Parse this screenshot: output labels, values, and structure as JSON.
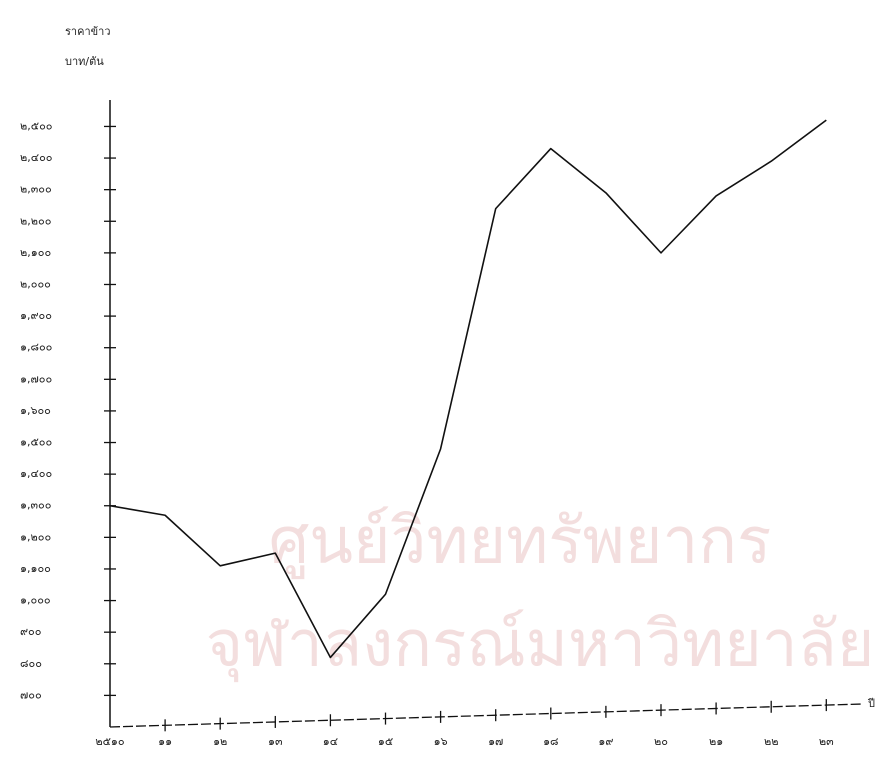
{
  "chart_data": {
    "type": "line",
    "y_axis_title": "ราคาข้าว",
    "y_axis_unit": "บาท/ตัน",
    "x_axis_title": "ปี",
    "watermark": [
      "ศูนย์วิทยทรัพยากร",
      "จุฬาลงกรณ์มหาวิทยาลัย"
    ],
    "categories": [
      "๒๕๑๐",
      "๑๑",
      "๑๒",
      "๑๓",
      "๑๔",
      "๑๕",
      "๑๖",
      "๑๗",
      "๑๘",
      "๑๙",
      "๒๐",
      "๒๑",
      "๒๒",
      "๒๓"
    ],
    "series": [
      {
        "name": null,
        "color": "#111111",
        "values": [
          1300,
          1270,
          1110,
          1150,
          820,
          1020,
          1480,
          2240,
          2430,
          2290,
          2100,
          2280,
          2390,
          2520
        ]
      }
    ],
    "ylim": [
      600,
      2590
    ],
    "yticks": [
      {
        "value": 700,
        "label": "๗๐๐"
      },
      {
        "value": 800,
        "label": "๘๐๐"
      },
      {
        "value": 900,
        "label": "๙๐๐"
      },
      {
        "value": 1000,
        "label": "๑,๐๐๐"
      },
      {
        "value": 1100,
        "label": "๑,๑๐๐"
      },
      {
        "value": 1200,
        "label": "๑,๒๐๐"
      },
      {
        "value": 1300,
        "label": "๑,๓๐๐"
      },
      {
        "value": 1400,
        "label": "๑,๔๐๐"
      },
      {
        "value": 1500,
        "label": "๑,๕๐๐"
      },
      {
        "value": 1600,
        "label": "๑,๖๐๐"
      },
      {
        "value": 1700,
        "label": "๑,๗๐๐"
      },
      {
        "value": 1800,
        "label": "๑,๘๐๐"
      },
      {
        "value": 1900,
        "label": "๑,๙๐๐"
      },
      {
        "value": 2000,
        "label": "๒,๐๐๐"
      },
      {
        "value": 2100,
        "label": "๒,๑๐๐"
      },
      {
        "value": 2200,
        "label": "๒,๒๐๐"
      },
      {
        "value": 2300,
        "label": "๒,๓๐๐"
      },
      {
        "value": 2400,
        "label": "๒,๔๐๐"
      },
      {
        "value": 2500,
        "label": "๒,๕๐๐"
      }
    ],
    "grid": false
  }
}
